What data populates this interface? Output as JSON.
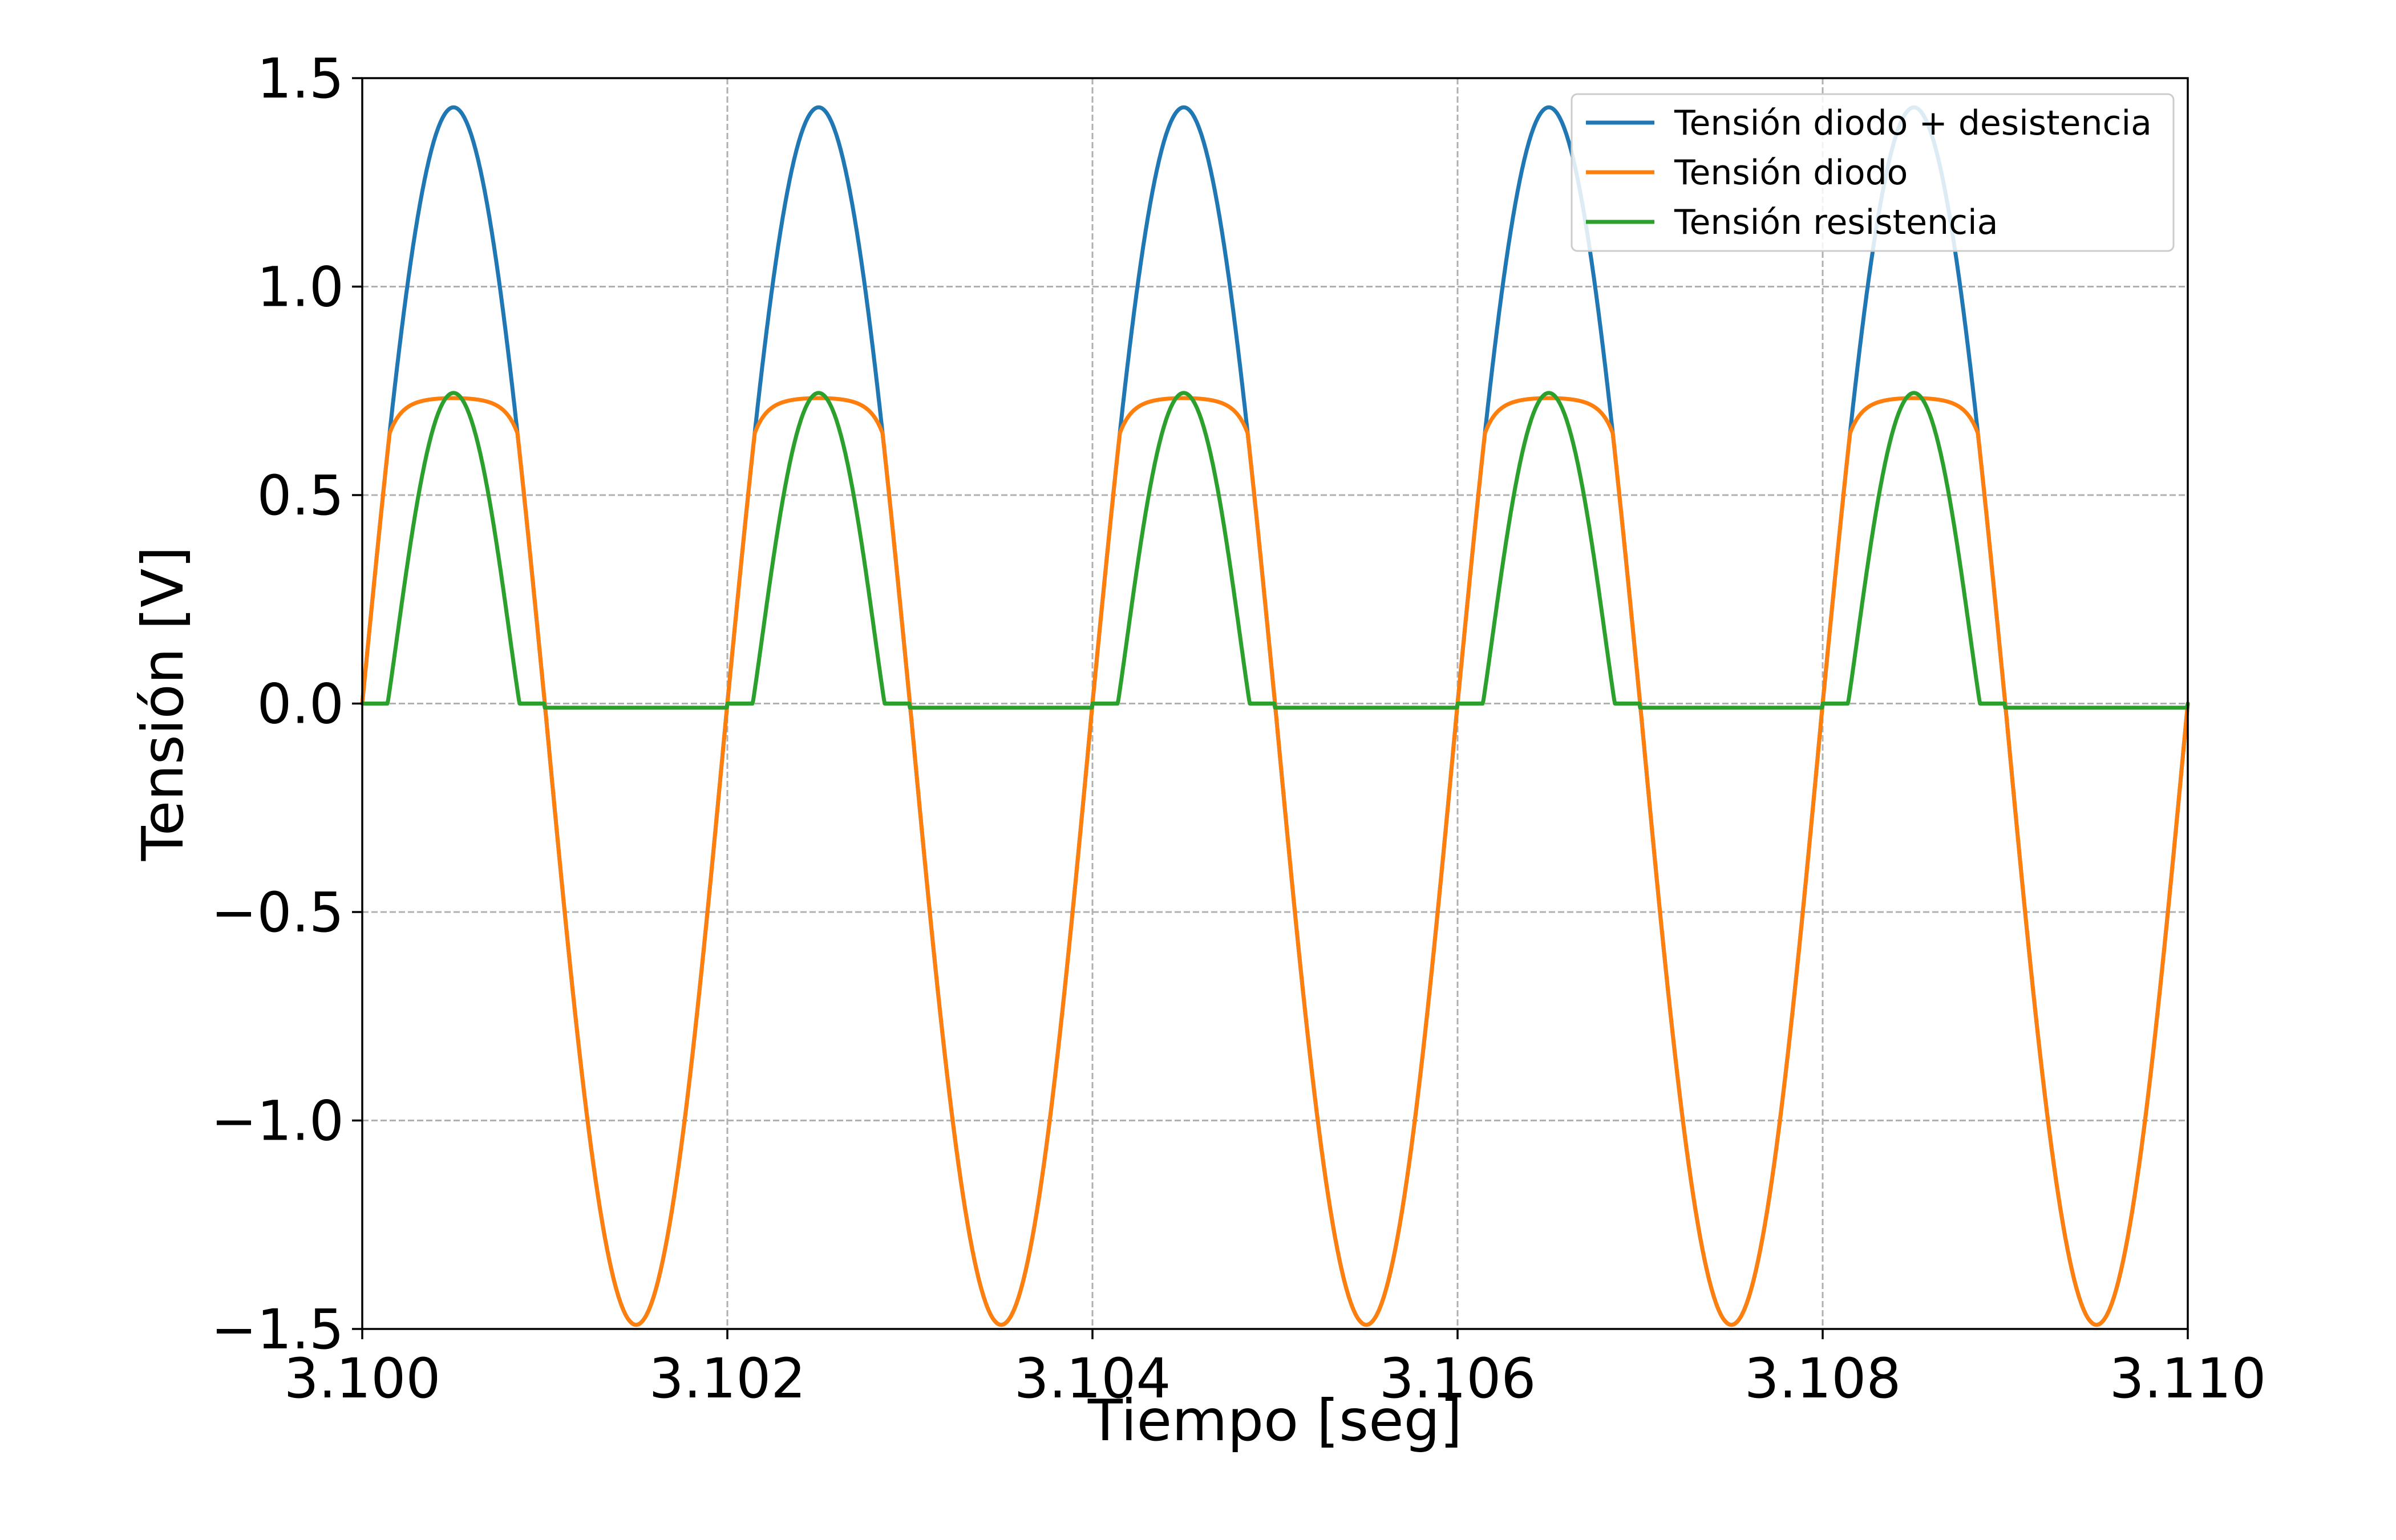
{
  "chart_data": {
    "type": "line",
    "title": "",
    "xlabel": "Tiempo [seg]",
    "ylabel": "Tensión [V]",
    "xlim": [
      3.1,
      3.11
    ],
    "ylim": [
      -1.5,
      1.5
    ],
    "xticks": [
      3.1,
      3.102,
      3.104,
      3.106,
      3.108,
      3.11
    ],
    "xtick_labels": [
      "3.100",
      "3.102",
      "3.104",
      "3.106",
      "3.108",
      "3.110"
    ],
    "yticks": [
      -1.5,
      -1.0,
      -0.5,
      0.0,
      0.5,
      1.0,
      1.5
    ],
    "ytick_labels": [
      "−1.5",
      "−1.0",
      "−0.5",
      "0.0",
      "0.5",
      "1.0",
      "1.5"
    ],
    "grid": true,
    "legend_position": "top-right",
    "x": [
      3.1,
      3.10025,
      3.1005,
      3.10075,
      3.101,
      3.10125,
      3.1015,
      3.10175,
      3.102,
      3.10225,
      3.1025,
      3.10275,
      3.103,
      3.10325,
      3.1035,
      3.10375,
      3.104,
      3.10425,
      3.1045,
      3.10475,
      3.105,
      3.10525,
      3.1055,
      3.10575,
      3.106,
      3.10625,
      3.1065,
      3.10675,
      3.107,
      3.10725,
      3.1075,
      3.10775,
      3.108,
      3.10825,
      3.1085,
      3.10875,
      3.109,
      3.10925,
      3.1095,
      3.10975,
      3.11
    ],
    "series": [
      {
        "name": "Tensión diodo + desistencia",
        "color": "#1f77b4",
        "values": [
          0.0,
          1.01,
          1.43,
          1.01,
          0.0,
          -1.05,
          -1.49,
          -1.05,
          0.0,
          1.01,
          1.43,
          1.01,
          0.0,
          -1.05,
          -1.49,
          -1.05,
          0.0,
          1.01,
          1.43,
          1.01,
          0.0,
          -1.05,
          -1.49,
          -1.05,
          0.0,
          1.01,
          1.43,
          1.01,
          0.0,
          -1.05,
          -1.49,
          -1.05,
          0.0,
          1.01,
          1.43,
          1.01,
          0.0,
          -1.05,
          -1.49,
          -1.05,
          0.0
        ]
      },
      {
        "name": "Tensión diodo",
        "color": "#ff7f0e",
        "values": [
          0.0,
          0.71,
          0.74,
          0.71,
          0.0,
          -1.05,
          -1.49,
          -1.05,
          0.0,
          0.71,
          0.74,
          0.71,
          0.0,
          -1.05,
          -1.49,
          -1.05,
          0.0,
          0.71,
          0.74,
          0.71,
          0.0,
          -1.05,
          -1.49,
          -1.05,
          0.0,
          0.71,
          0.74,
          0.71,
          0.0,
          -1.05,
          -1.49,
          -1.05,
          0.0,
          0.71,
          0.74,
          0.71,
          0.0,
          -1.05,
          -1.49,
          -1.05,
          0.0
        ]
      },
      {
        "name": "Tensión resistencia",
        "color": "#2ca02c",
        "values": [
          0.0,
          0.3,
          0.69,
          0.3,
          0.0,
          -0.01,
          -0.01,
          -0.01,
          0.0,
          0.3,
          0.69,
          0.3,
          0.0,
          -0.01,
          -0.01,
          -0.01,
          0.0,
          0.3,
          0.69,
          0.3,
          0.0,
          -0.01,
          -0.01,
          -0.01,
          0.0,
          0.3,
          0.69,
          0.3,
          0.0,
          -0.01,
          -0.01,
          -0.01,
          0.0,
          0.3,
          0.69,
          0.3,
          0.0,
          -0.01,
          -0.01,
          -0.01,
          0.0
        ]
      }
    ]
  }
}
